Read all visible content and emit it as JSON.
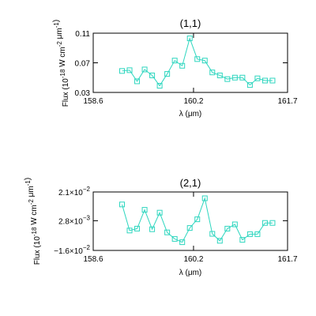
{
  "chart_data": [
    {
      "type": "line",
      "title": "(1,1)",
      "xlabel": "λ (μm)",
      "ylabel": "Flux (10^-18 W cm^-2 μm^-1)",
      "xlim": [
        158.6,
        161.7
      ],
      "ylim": [
        0.03,
        0.11
      ],
      "xticks": [
        "158.6",
        "160.2",
        "161.7"
      ],
      "yticks": [
        "0.03",
        "0.07",
        "0.11"
      ],
      "yticks_values": [
        0.03,
        0.07,
        0.11
      ],
      "grid": false,
      "series": [
        {
          "x": [
            159.06,
            159.18,
            159.3,
            159.42,
            159.54,
            159.66,
            159.78,
            159.9,
            160.02,
            160.14,
            160.26,
            160.38,
            160.5,
            160.62,
            160.74,
            160.86,
            160.98,
            161.1,
            161.22,
            161.34,
            161.46
          ],
          "y": [
            0.059,
            0.06,
            0.045,
            0.061,
            0.053,
            0.039,
            0.055,
            0.073,
            0.066,
            0.103,
            0.075,
            0.073,
            0.057,
            0.053,
            0.048,
            0.05,
            0.05,
            0.04,
            0.049,
            0.046,
            0.046
          ]
        }
      ]
    },
    {
      "type": "line",
      "title": "(2,1)",
      "xlabel": "λ (μm)",
      "ylabel": "Flux (10^-18 W cm^-2 μm^-1)",
      "xlim": [
        158.6,
        161.7
      ],
      "ylim": [
        -0.016,
        0.021
      ],
      "xticks": [
        "158.6",
        "160.2",
        "161.7"
      ],
      "yticks": [
        "−1.6×10",
        "2.8×10",
        "2.1×10"
      ],
      "yticks_exponents": [
        "−2",
        "−3",
        "−2"
      ],
      "yticks_values": [
        -0.016,
        0.0028,
        0.021
      ],
      "grid": false,
      "series": [
        {
          "x": [
            159.06,
            159.18,
            159.3,
            159.42,
            159.54,
            159.66,
            159.78,
            159.9,
            160.02,
            160.14,
            160.26,
            160.38,
            160.5,
            160.62,
            160.74,
            160.86,
            160.98,
            161.1,
            161.22,
            161.34,
            161.46
          ],
          "y": [
            0.0131,
            -0.0034,
            -0.0022,
            0.0097,
            -0.0026,
            0.0079,
            -0.0046,
            -0.0087,
            -0.0108,
            -0.0018,
            0.0037,
            0.017,
            -0.0055,
            -0.0099,
            -0.0022,
            0.0005,
            -0.0093,
            -0.0057,
            -0.0057,
            0.0014,
            0.0014
          ]
        }
      ]
    }
  ]
}
